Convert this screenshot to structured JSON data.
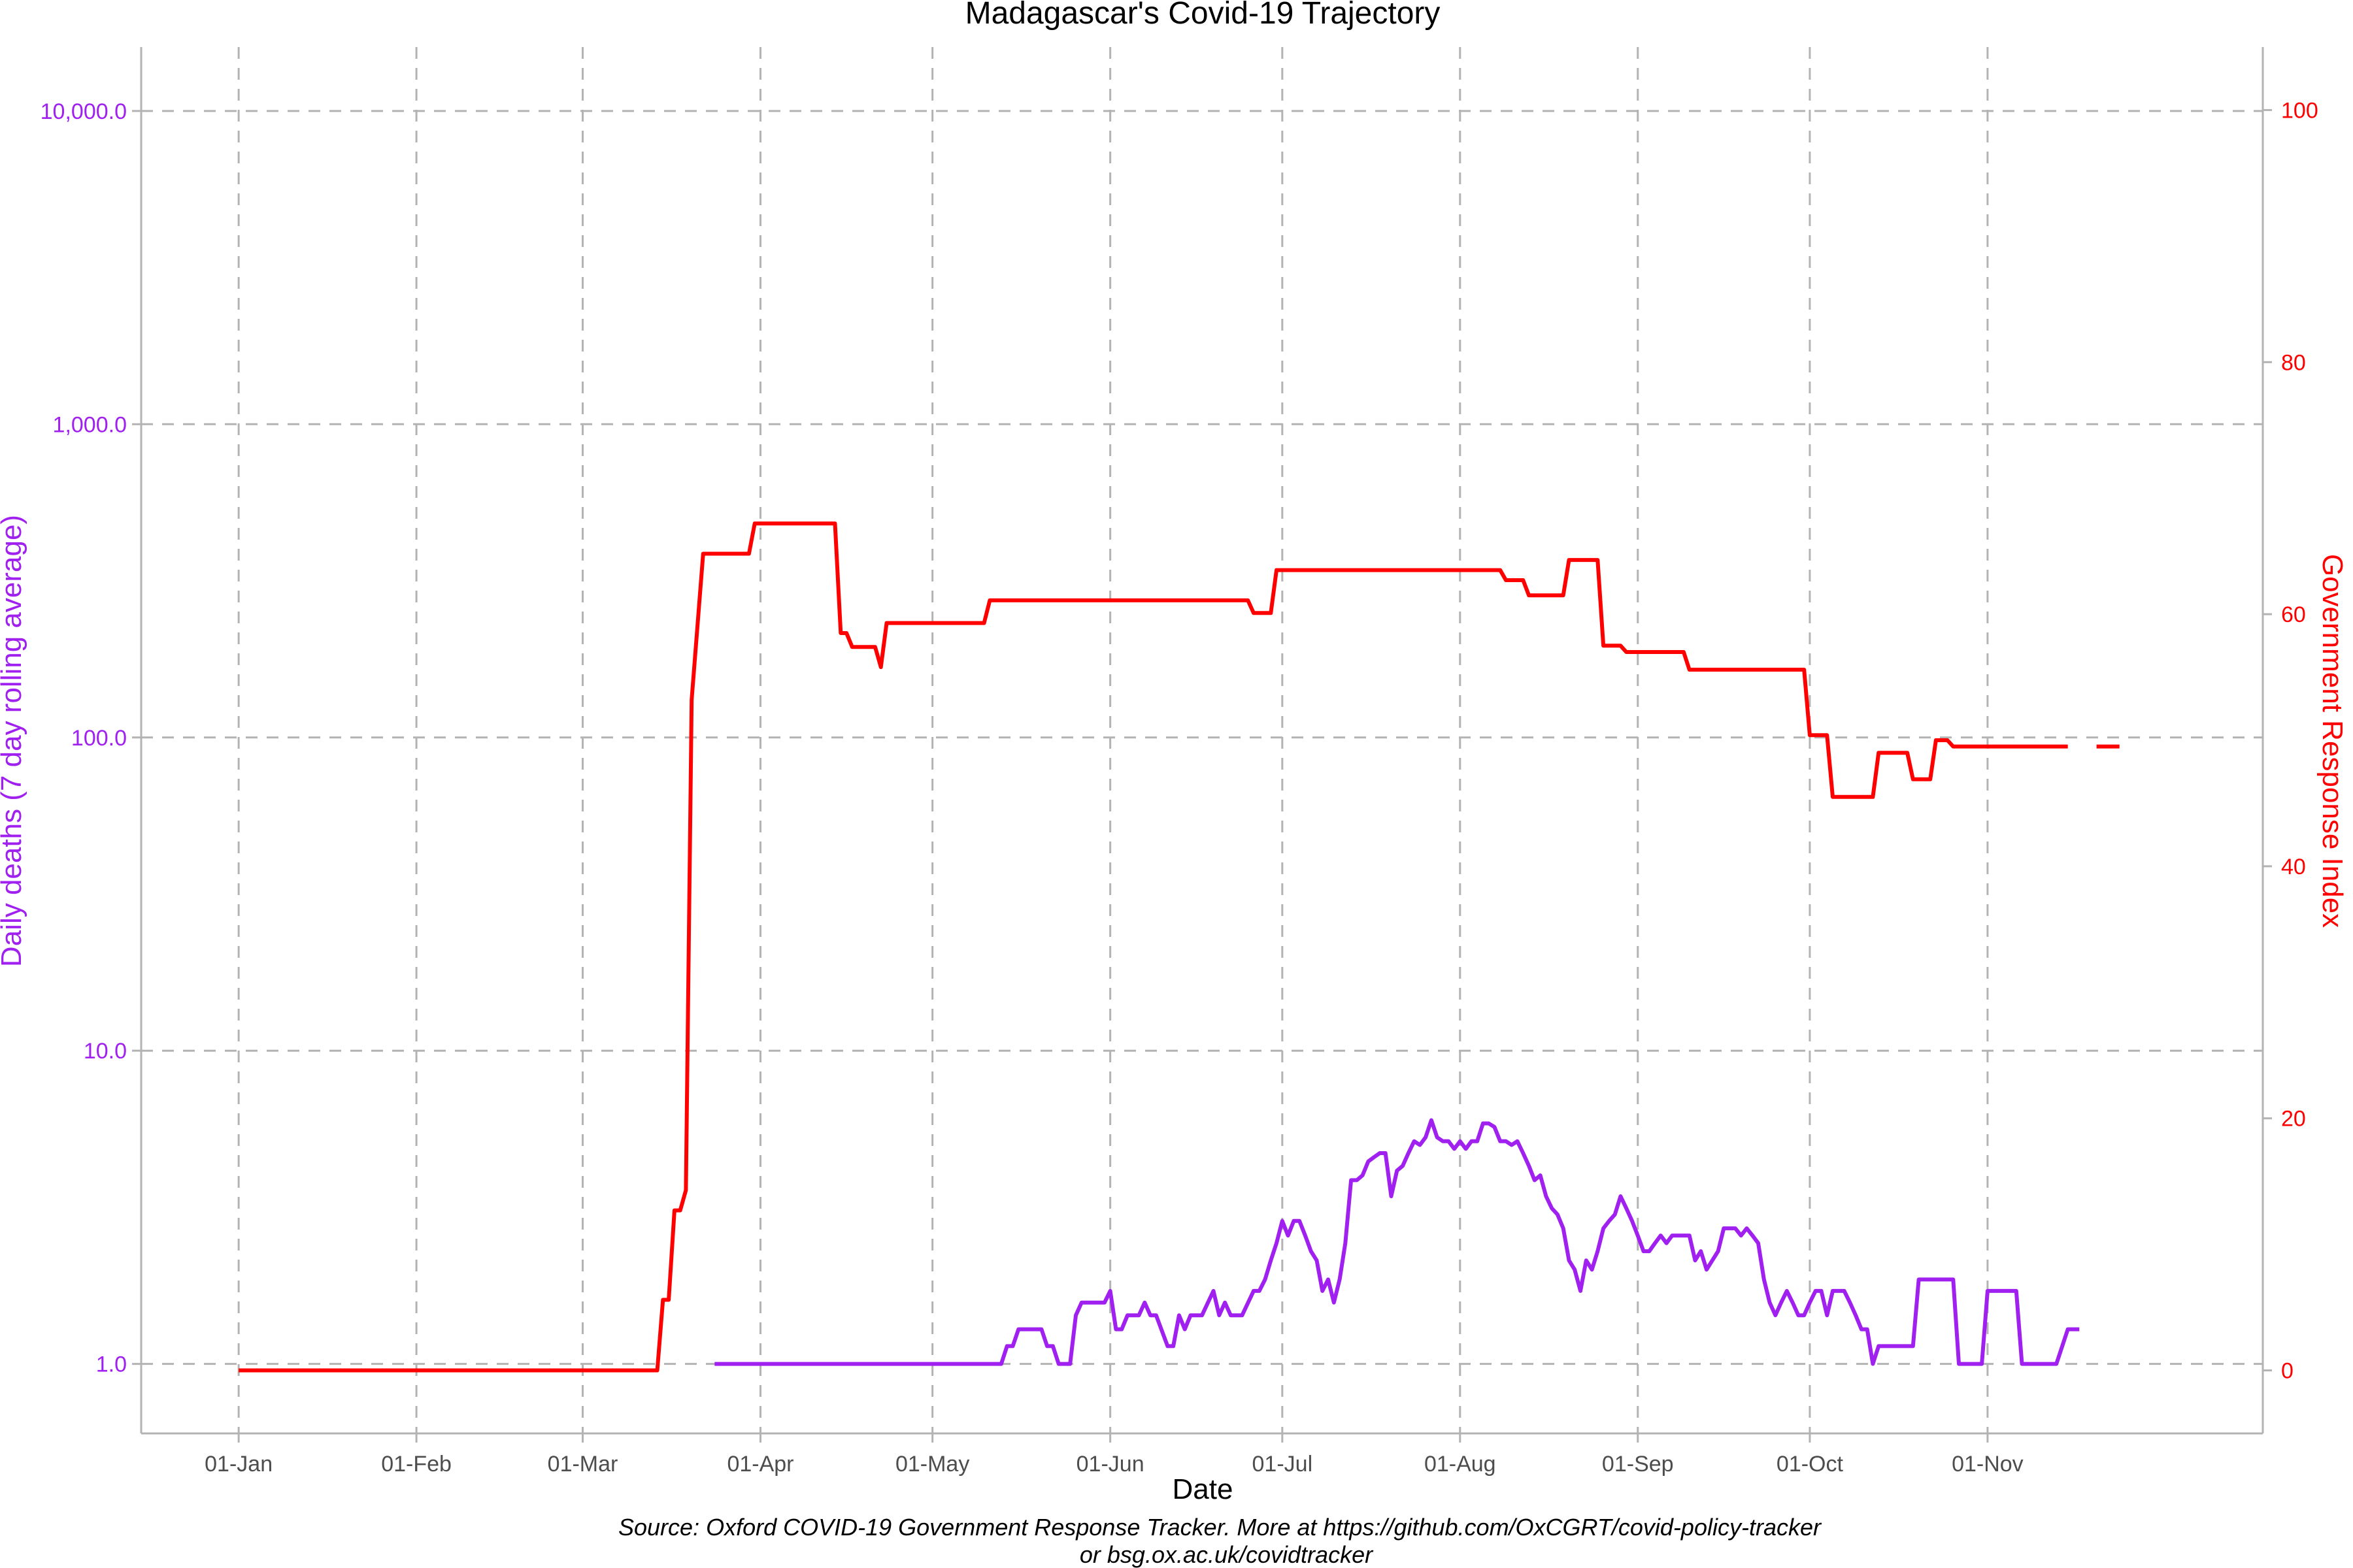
{
  "chart_data": {
    "type": "line",
    "title": "Madagascar's Covid-19 Trajectory",
    "xlabel": "Date",
    "ylabel_left": "Daily deaths (7 day rolling average)",
    "ylabel_right": "Government Response Index",
    "caption_line1": "Source: Oxford COVID-19 Government Response Tracker. More at https://github.com/OxCGRT/covid-policy-tracker",
    "caption_line2": "or bsg.ox.ac.uk/covidtracker",
    "x_ticks": [
      {
        "date": "2020-01-01",
        "label": "01-Jan"
      },
      {
        "date": "2020-02-01",
        "label": "01-Feb"
      },
      {
        "date": "2020-03-01",
        "label": "01-Mar"
      },
      {
        "date": "2020-04-01",
        "label": "01-Apr"
      },
      {
        "date": "2020-05-01",
        "label": "01-May"
      },
      {
        "date": "2020-06-01",
        "label": "01-Jun"
      },
      {
        "date": "2020-07-01",
        "label": "01-Jul"
      },
      {
        "date": "2020-08-01",
        "label": "01-Aug"
      },
      {
        "date": "2020-09-01",
        "label": "01-Sep"
      },
      {
        "date": "2020-10-01",
        "label": "01-Oct"
      },
      {
        "date": "2020-11-01",
        "label": "01-Nov"
      }
    ],
    "xlim": [
      "2019-12-15",
      "2020-12-19"
    ],
    "y_left": {
      "scale": "log",
      "lim": [
        0.6,
        16000
      ],
      "ticks": [
        {
          "value": 1,
          "label": "1.0"
        },
        {
          "value": 10,
          "label": "10.0"
        },
        {
          "value": 100,
          "label": "100.0"
        },
        {
          "value": 1000,
          "label": "1,000.0"
        },
        {
          "value": 10000,
          "label": "10,000.0"
        }
      ]
    },
    "y_right": {
      "scale": "linear",
      "lim": [
        -5,
        105
      ],
      "ticks": [
        {
          "value": 0,
          "label": "0"
        },
        {
          "value": 20,
          "label": "20"
        },
        {
          "value": 40,
          "label": "40"
        },
        {
          "value": 60,
          "label": "60"
        },
        {
          "value": 80,
          "label": "80"
        },
        {
          "value": 100,
          "label": "100"
        }
      ]
    },
    "grid": true,
    "colors": {
      "deaths": "#a020f0",
      "response": "#ff0000",
      "grid": "#b3b3b3",
      "axis": "#b3b3b3"
    },
    "series": [
      {
        "axis": "right",
        "color": "#ff0000",
        "segments": [
          [
            [
              "2020-01-01",
              0
            ],
            [
              "2020-03-14",
              0
            ],
            [
              "2020-03-15",
              5.6
            ],
            [
              "2020-03-16",
              5.6
            ],
            [
              "2020-03-17",
              12.7
            ],
            [
              "2020-03-18",
              12.7
            ],
            [
              "2020-03-19",
              14.3
            ],
            [
              "2020-03-20",
              53.2
            ],
            [
              "2020-03-22",
              64.8
            ],
            [
              "2020-03-30",
              64.8
            ],
            [
              "2020-03-31",
              67.2
            ],
            [
              "2020-04-14",
              67.2
            ],
            [
              "2020-04-15",
              58.5
            ],
            [
              "2020-04-16",
              58.5
            ],
            [
              "2020-04-17",
              57.4
            ],
            [
              "2020-04-21",
              57.4
            ],
            [
              "2020-04-22",
              55.8
            ],
            [
              "2020-04-23",
              59.3
            ],
            [
              "2020-05-10",
              59.3
            ],
            [
              "2020-05-11",
              61.1
            ],
            [
              "2020-06-25",
              61.1
            ],
            [
              "2020-06-26",
              60.1
            ],
            [
              "2020-06-29",
              60.1
            ],
            [
              "2020-06-30",
              63.5
            ],
            [
              "2020-08-08",
              63.5
            ],
            [
              "2020-08-09",
              62.7
            ],
            [
              "2020-08-12",
              62.7
            ],
            [
              "2020-08-13",
              61.5
            ],
            [
              "2020-08-19",
              61.5
            ],
            [
              "2020-08-20",
              64.3
            ],
            [
              "2020-08-25",
              64.3
            ],
            [
              "2020-08-26",
              57.5
            ],
            [
              "2020-08-29",
              57.5
            ],
            [
              "2020-08-30",
              57.0
            ],
            [
              "2020-09-09",
              57.0
            ],
            [
              "2020-09-10",
              55.6
            ],
            [
              "2020-09-30",
              55.6
            ],
            [
              "2020-10-01",
              50.4
            ],
            [
              "2020-10-04",
              50.4
            ],
            [
              "2020-10-05",
              45.5
            ],
            [
              "2020-10-12",
              45.5
            ],
            [
              "2020-10-13",
              49.0
            ],
            [
              "2020-10-18",
              49.0
            ],
            [
              "2020-10-19",
              46.9
            ],
            [
              "2020-10-22",
              46.9
            ],
            [
              "2020-10-23",
              50.0
            ],
            [
              "2020-10-25",
              50.0
            ],
            [
              "2020-10-26",
              49.5
            ],
            [
              "2020-11-15",
              49.5
            ]
          ],
          [
            [
              "2020-11-20",
              49.5
            ],
            [
              "2020-11-24",
              49.5
            ]
          ]
        ]
      },
      {
        "axis": "left",
        "color": "#a020f0",
        "segments": [
          [
            [
              "2020-03-24",
              1.0
            ],
            [
              "2020-05-13",
              1.0
            ],
            [
              "2020-05-14",
              1.14
            ],
            [
              "2020-05-15",
              1.14
            ],
            [
              "2020-05-16",
              1.29
            ],
            [
              "2020-05-20",
              1.29
            ],
            [
              "2020-05-21",
              1.14
            ],
            [
              "2020-05-22",
              1.14
            ],
            [
              "2020-05-23",
              1.0
            ],
            [
              "2020-05-25",
              1.0
            ],
            [
              "2020-05-26",
              1.43
            ],
            [
              "2020-05-27",
              1.57
            ],
            [
              "2020-05-31",
              1.57
            ],
            [
              "2020-06-01",
              1.71
            ],
            [
              "2020-06-02",
              1.29
            ],
            [
              "2020-06-03",
              1.29
            ],
            [
              "2020-06-04",
              1.43
            ],
            [
              "2020-06-06",
              1.43
            ],
            [
              "2020-06-07",
              1.57
            ],
            [
              "2020-06-08",
              1.43
            ],
            [
              "2020-06-09",
              1.43
            ],
            [
              "2020-06-11",
              1.14
            ],
            [
              "2020-06-12",
              1.14
            ],
            [
              "2020-06-13",
              1.43
            ],
            [
              "2020-06-14",
              1.29
            ],
            [
              "2020-06-15",
              1.43
            ],
            [
              "2020-06-17",
              1.43
            ],
            [
              "2020-06-19",
              1.71
            ],
            [
              "2020-06-20",
              1.43
            ],
            [
              "2020-06-21",
              1.57
            ],
            [
              "2020-06-22",
              1.43
            ],
            [
              "2020-06-24",
              1.43
            ],
            [
              "2020-06-26",
              1.71
            ],
            [
              "2020-06-27",
              1.71
            ],
            [
              "2020-06-28",
              1.86
            ],
            [
              "2020-06-29",
              2.14
            ],
            [
              "2020-06-30",
              2.43
            ],
            [
              "2020-07-01",
              2.86
            ],
            [
              "2020-07-02",
              2.57
            ],
            [
              "2020-07-03",
              2.86
            ],
            [
              "2020-07-04",
              2.86
            ],
            [
              "2020-07-05",
              2.57
            ],
            [
              "2020-07-06",
              2.29
            ],
            [
              "2020-07-07",
              2.14
            ],
            [
              "2020-07-08",
              1.71
            ],
            [
              "2020-07-09",
              1.86
            ],
            [
              "2020-07-10",
              1.57
            ],
            [
              "2020-07-11",
              1.86
            ],
            [
              "2020-07-12",
              2.43
            ],
            [
              "2020-07-13",
              3.86
            ],
            [
              "2020-07-14",
              3.86
            ],
            [
              "2020-07-15",
              4.0
            ],
            [
              "2020-07-16",
              4.43
            ],
            [
              "2020-07-17",
              4.57
            ],
            [
              "2020-07-18",
              4.71
            ],
            [
              "2020-07-19",
              4.71
            ],
            [
              "2020-07-20",
              3.43
            ],
            [
              "2020-07-21",
              4.14
            ],
            [
              "2020-07-22",
              4.29
            ],
            [
              "2020-07-23",
              4.71
            ],
            [
              "2020-07-24",
              5.14
            ],
            [
              "2020-07-25",
              5.0
            ],
            [
              "2020-07-26",
              5.29
            ],
            [
              "2020-07-27",
              6.0
            ],
            [
              "2020-07-28",
              5.29
            ],
            [
              "2020-07-29",
              5.14
            ],
            [
              "2020-07-30",
              5.14
            ],
            [
              "2020-07-31",
              4.86
            ],
            [
              "2020-08-01",
              5.14
            ],
            [
              "2020-08-02",
              4.86
            ],
            [
              "2020-08-03",
              5.14
            ],
            [
              "2020-08-04",
              5.14
            ],
            [
              "2020-08-05",
              5.86
            ],
            [
              "2020-08-06",
              5.86
            ],
            [
              "2020-08-07",
              5.71
            ],
            [
              "2020-08-08",
              5.14
            ],
            [
              "2020-08-09",
              5.14
            ],
            [
              "2020-08-10",
              5.0
            ],
            [
              "2020-08-11",
              5.14
            ],
            [
              "2020-08-12",
              4.71
            ],
            [
              "2020-08-13",
              4.29
            ],
            [
              "2020-08-14",
              3.86
            ],
            [
              "2020-08-15",
              4.0
            ],
            [
              "2020-08-16",
              3.43
            ],
            [
              "2020-08-17",
              3.14
            ],
            [
              "2020-08-18",
              3.0
            ],
            [
              "2020-08-19",
              2.71
            ],
            [
              "2020-08-20",
              2.14
            ],
            [
              "2020-08-21",
              2.0
            ],
            [
              "2020-08-22",
              1.71
            ],
            [
              "2020-08-23",
              2.14
            ],
            [
              "2020-08-24",
              2.0
            ],
            [
              "2020-08-25",
              2.29
            ],
            [
              "2020-08-26",
              2.71
            ],
            [
              "2020-08-27",
              2.86
            ],
            [
              "2020-08-28",
              3.0
            ],
            [
              "2020-08-29",
              3.43
            ],
            [
              "2020-08-30",
              3.14
            ],
            [
              "2020-08-31",
              2.86
            ],
            [
              "2020-09-01",
              2.57
            ],
            [
              "2020-09-02",
              2.29
            ],
            [
              "2020-09-03",
              2.29
            ],
            [
              "2020-09-04",
              2.43
            ],
            [
              "2020-09-05",
              2.57
            ],
            [
              "2020-09-06",
              2.43
            ],
            [
              "2020-09-07",
              2.57
            ],
            [
              "2020-09-10",
              2.57
            ],
            [
              "2020-09-11",
              2.14
            ],
            [
              "2020-09-12",
              2.29
            ],
            [
              "2020-09-13",
              2.0
            ],
            [
              "2020-09-14",
              2.14
            ],
            [
              "2020-09-15",
              2.29
            ],
            [
              "2020-09-16",
              2.71
            ],
            [
              "2020-09-18",
              2.71
            ],
            [
              "2020-09-19",
              2.57
            ],
            [
              "2020-09-20",
              2.71
            ],
            [
              "2020-09-21",
              2.57
            ],
            [
              "2020-09-22",
              2.43
            ],
            [
              "2020-09-23",
              1.86
            ],
            [
              "2020-09-24",
              1.57
            ],
            [
              "2020-09-25",
              1.43
            ],
            [
              "2020-09-26",
              1.57
            ],
            [
              "2020-09-27",
              1.71
            ],
            [
              "2020-09-28",
              1.57
            ],
            [
              "2020-09-29",
              1.43
            ],
            [
              "2020-09-30",
              1.43
            ],
            [
              "2020-10-01",
              1.57
            ],
            [
              "2020-10-02",
              1.71
            ],
            [
              "2020-10-03",
              1.71
            ],
            [
              "2020-10-04",
              1.43
            ],
            [
              "2020-10-05",
              1.71
            ],
            [
              "2020-10-07",
              1.71
            ],
            [
              "2020-10-08",
              1.57
            ],
            [
              "2020-10-09",
              1.43
            ],
            [
              "2020-10-10",
              1.29
            ],
            [
              "2020-10-11",
              1.29
            ],
            [
              "2020-10-12",
              1.0
            ],
            [
              "2020-10-13",
              1.14
            ],
            [
              "2020-10-19",
              1.14
            ],
            [
              "2020-10-20",
              1.86
            ],
            [
              "2020-10-26",
              1.86
            ],
            [
              "2020-10-27",
              1.0
            ],
            [
              "2020-10-31",
              1.0
            ],
            [
              "2020-11-01",
              1.71
            ],
            [
              "2020-11-06",
              1.71
            ],
            [
              "2020-11-07",
              1.0
            ],
            [
              "2020-11-13",
              1.0
            ],
            [
              "2020-11-15",
              1.29
            ],
            [
              "2020-11-17",
              1.29
            ]
          ]
        ]
      }
    ]
  }
}
